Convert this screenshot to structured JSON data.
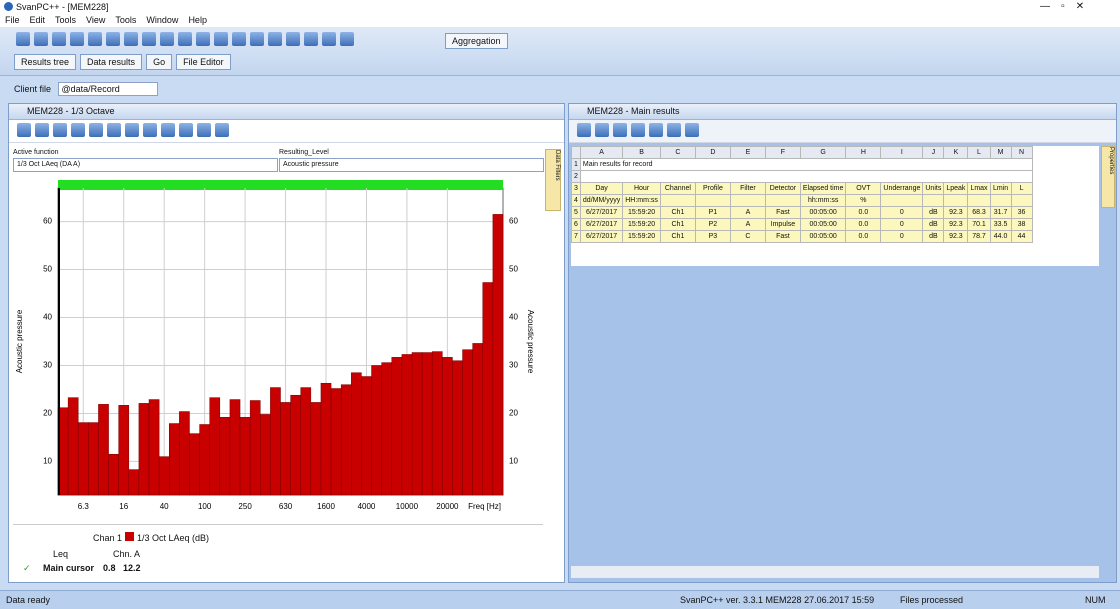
{
  "window": {
    "title": "SvanPC++ - [MEM228]",
    "menu": [
      "File",
      "Edit",
      "Tools",
      "View",
      "Tools",
      "Window",
      "Help"
    ]
  },
  "toolbar": {
    "aggregation": "Aggregation",
    "tabs": [
      "Results tree",
      "Data results",
      "Go",
      "File Editor"
    ],
    "client_label": "Client file",
    "client_value": "@data/Record"
  },
  "left_panel": {
    "title": "MEM228 - 1/3 Octave",
    "function_label": "Active function",
    "function_value": "1/3 Oct LAeq (DA A)",
    "param_label": "Resulting_Level",
    "param_value": "Acoustic pressure",
    "side_tab": "Data Filters"
  },
  "chart_data": {
    "type": "bar",
    "y_label": "Acoustic pressure",
    "x_label": "Freq [Hz]",
    "color": "#c80000",
    "indicator_color": "#22dd22",
    "ylim": [
      3,
      67
    ],
    "yticks": [
      10,
      20,
      30,
      40,
      50,
      60
    ],
    "categories": [
      null,
      null,
      "6.3",
      null,
      null,
      null,
      "16",
      null,
      null,
      null,
      "40",
      null,
      null,
      null,
      "100",
      null,
      null,
      null,
      "250",
      null,
      null,
      null,
      "630",
      null,
      null,
      null,
      "1600",
      null,
      null,
      null,
      "4000",
      null,
      null,
      null,
      "10000",
      null,
      null,
      null,
      "20000",
      null,
      null,
      null,
      null,
      null
    ],
    "values": [
      21.2,
      23.3,
      18.1,
      18.1,
      21.9,
      11.5,
      21.7,
      8.3,
      22.1,
      22.9,
      11.0,
      17.9,
      20.4,
      15.8,
      17.7,
      23.3,
      19.2,
      22.9,
      19.2,
      22.7,
      19.8,
      25.4,
      22.3,
      23.8,
      25.4,
      22.3,
      26.3,
      25.2,
      26.0,
      28.5,
      27.7,
      30.0,
      30.6,
      31.7,
      32.3,
      32.7,
      32.7,
      32.9,
      31.7,
      31.0,
      33.3,
      34.6,
      47.3,
      61.5
    ]
  },
  "cursor": {
    "chan_label": "Chan 1",
    "legend": "1/3 Oct LAeq (dB)",
    "mode": "Leq",
    "weighting": "Chn. A",
    "main_label": "Main cursor",
    "freq": "0.8",
    "value": "12.2"
  },
  "right_panel": {
    "title": "MEM228 - Main results",
    "side_tab": "Properties",
    "table": {
      "columns": [
        "A",
        "B",
        "C",
        "D",
        "E",
        "F",
        "G",
        "H",
        "I",
        "J",
        "K",
        "L",
        "M",
        "N"
      ],
      "row_numbers": [
        "1",
        "2",
        "3",
        "4",
        "5",
        "6",
        "7"
      ],
      "caption": "Main results for record",
      "header": [
        "Day",
        "Hour",
        "Channel",
        "Profile",
        "Filter",
        "Detector",
        "Elapsed time",
        "OVT",
        "Underrange",
        "Units",
        "Lpeak",
        "Lmax",
        "Lmin",
        "L"
      ],
      "units": [
        "dd/MM/yyyy",
        "HH:mm:ss",
        "",
        "",
        "",
        "",
        "hh:mm:ss",
        "%",
        "",
        "",
        "",
        "",
        "",
        ""
      ],
      "rows": [
        [
          "6/27/2017",
          "15:59:20",
          "Ch1",
          "P1",
          "A",
          "Fast",
          "00:05:00",
          "0.0",
          "0",
          "dB",
          "92.3",
          "68.3",
          "31.7",
          "36"
        ],
        [
          "6/27/2017",
          "15:59:20",
          "Ch1",
          "P2",
          "A",
          "Impulse",
          "00:05:00",
          "0.0",
          "0",
          "dB",
          "92.3",
          "70.1",
          "33.5",
          "38"
        ],
        [
          "6/27/2017",
          "15:59:20",
          "Ch1",
          "P3",
          "C",
          "Fast",
          "00:05:00",
          "0.0",
          "0",
          "dB",
          "92.3",
          "78.7",
          "44.0",
          "44"
        ]
      ]
    }
  },
  "status": {
    "left": "Data ready",
    "center": "SvanPC++ ver. 3.3.1 MEM228 27.06.2017 15:59",
    "right": "Files processed",
    "far_right": "NUM"
  }
}
